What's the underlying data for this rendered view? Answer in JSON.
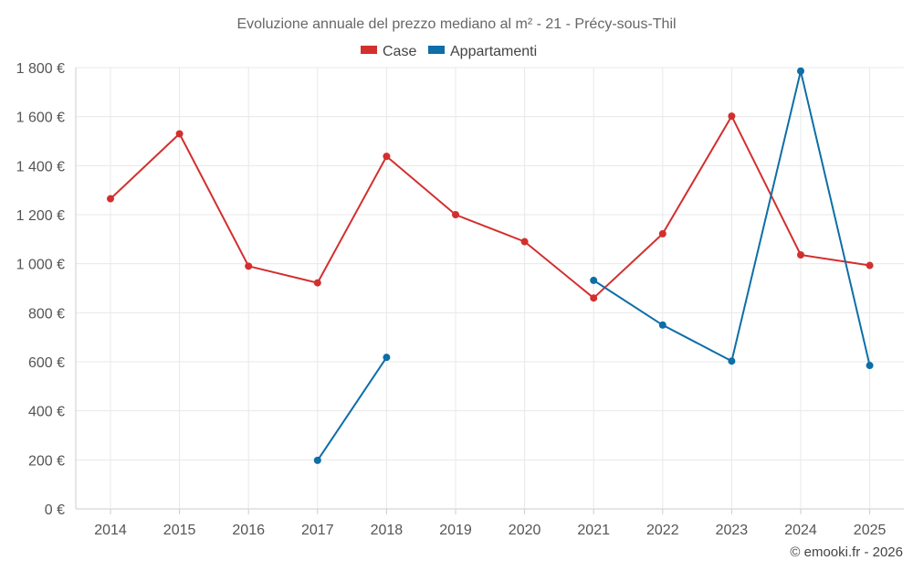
{
  "chart_data": {
    "type": "line",
    "title": "Evoluzione annuale del prezzo mediano al m² - 21 - Précy-sous-Thil",
    "categories": [
      "2014",
      "2015",
      "2016",
      "2017",
      "2018",
      "2019",
      "2020",
      "2021",
      "2022",
      "2023",
      "2024",
      "2025"
    ],
    "ylim": [
      0,
      1800
    ],
    "yticks": [
      0,
      200,
      400,
      600,
      800,
      1000,
      1200,
      1400,
      1600,
      1800
    ],
    "ytick_labels": [
      "0 €",
      "200 €",
      "400 €",
      "600 €",
      "800 €",
      "1 000 €",
      "1 200 €",
      "1 400 €",
      "1 600 €",
      "1 800 €"
    ],
    "grid": true,
    "legend_position": "top-center",
    "series": [
      {
        "name": "Case",
        "color": "#d32f2f",
        "values": [
          1265,
          1530,
          990,
          922,
          1438,
          1200,
          1090,
          860,
          1122,
          1602,
          1036,
          993
        ]
      },
      {
        "name": "Appartamenti",
        "color": "#0d6ea8",
        "values": [
          null,
          null,
          null,
          198,
          618,
          null,
          null,
          932,
          750,
          603,
          1786,
          585
        ]
      }
    ]
  },
  "credit": "© emooki.fr - 2026"
}
